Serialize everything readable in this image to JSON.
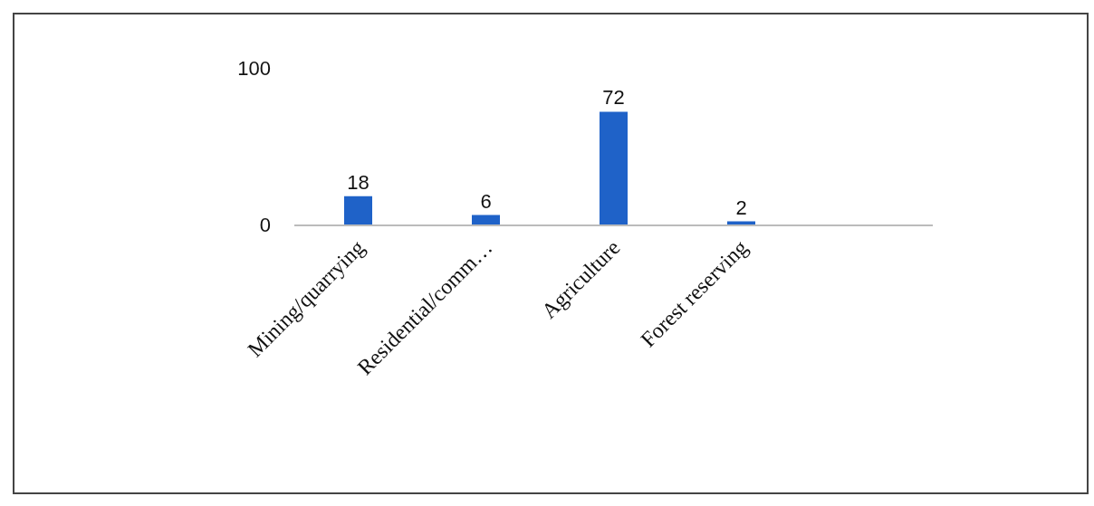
{
  "chart_data": {
    "type": "bar",
    "categories": [
      "Mining/quarrying",
      "Residential/comm…",
      "Agriculture",
      "Forest reserving",
      null
    ],
    "values": [
      18,
      6,
      72,
      2,
      null
    ],
    "color": "#1f62c8",
    "ylim": [
      0,
      100
    ],
    "yticks": [
      0,
      100
    ],
    "data_labels": true,
    "grid": false,
    "legend": false
  }
}
